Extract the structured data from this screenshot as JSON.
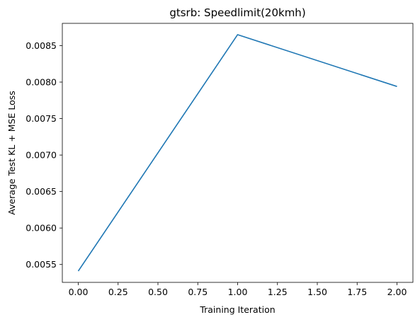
{
  "chart_data": {
    "type": "line",
    "title": "gtsrb: Speedlimit(20kmh)",
    "xlabel": "Training Iteration",
    "ylabel": "Average Test KL + MSE Loss",
    "xlim": [
      -0.1,
      2.1
    ],
    "ylim": [
      0.005255,
      0.008805
    ],
    "xticks": [
      0.0,
      0.25,
      0.5,
      0.75,
      1.0,
      1.25,
      1.5,
      1.75,
      2.0
    ],
    "xtick_labels": [
      "0.00",
      "0.25",
      "0.50",
      "0.75",
      "1.00",
      "1.25",
      "1.50",
      "1.75",
      "2.00"
    ],
    "yticks": [
      0.0055,
      0.006,
      0.0065,
      0.007,
      0.0075,
      0.008,
      0.0085
    ],
    "ytick_labels": [
      "0.0055",
      "0.0060",
      "0.0065",
      "0.0070",
      "0.0075",
      "0.0080",
      "0.0085"
    ],
    "grid": false,
    "series": [
      {
        "x": [
          0,
          1,
          2
        ],
        "y": [
          0.00541,
          0.00865,
          0.00794
        ],
        "color": "#1f77b4"
      }
    ]
  }
}
